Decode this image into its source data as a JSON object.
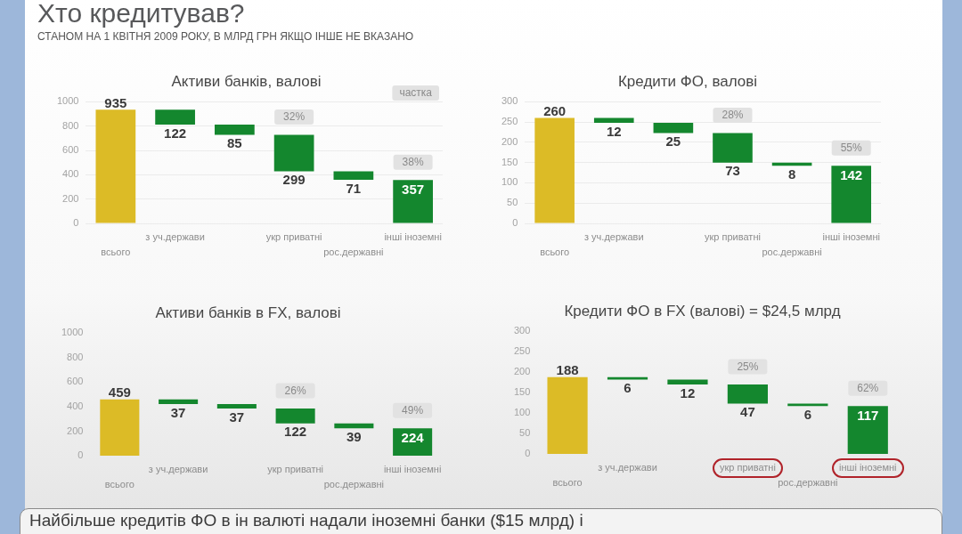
{
  "chart_data": [
    {
      "type": "other",
      "title": "Хто кредитував?",
      "subtitle": "СТАНОМ НА 1 КВІТНЯ 2009 РОКУ, В МЛРД ГРН ЯКЩО ІНШЕ НЕ ВКАЗАНО",
      "annotations": [
        "Найбільше кредитів ФО в ін валюті надали іноземні банки ($15 млрд) і"
      ]
    },
    {
      "type": "bar",
      "title": "Активи банків, валові",
      "categories": [
        "всього",
        "з уч.держави",
        null,
        "укр приватні",
        "рос.державні",
        "інші іноземні"
      ],
      "values": [
        935,
        122,
        85,
        299,
        71,
        357
      ],
      "base": [
        0,
        813,
        728,
        429,
        358,
        0
      ],
      "colors": [
        "#dcbb26",
        "#14872e",
        "#14872e",
        "#14872e",
        "#14872e",
        "#14872e"
      ],
      "ylim": [
        0,
        1000
      ],
      "yticks": [
        0,
        200,
        400,
        600,
        800,
        1000
      ],
      "grid": "y",
      "data_labels": true,
      "annotations": [
        "частка",
        {
          "text": "32%",
          "x": "укр приватні",
          "y": 728
        },
        {
          "text": "38%",
          "x": "інші іноземні",
          "y": 357
        }
      ]
    },
    {
      "type": "bar",
      "title": "Кредити ФО, валові",
      "categories": [
        "всього",
        "з уч.держави",
        null,
        "укр приватні",
        "рос.державні",
        "інші іноземні"
      ],
      "values": [
        260,
        12,
        25,
        73,
        8,
        142
      ],
      "base": [
        0,
        248,
        223,
        150,
        142,
        0
      ],
      "colors": [
        "#dcbb26",
        "#14872e",
        "#14872e",
        "#14872e",
        "#14872e",
        "#14872e"
      ],
      "ylim": [
        0,
        300
      ],
      "yticks": [
        0,
        50,
        100,
        150,
        200,
        250,
        300
      ],
      "grid": "y",
      "data_labels": true,
      "annotations": [
        {
          "text": "28%",
          "x": "укр приватні",
          "y": 223
        },
        {
          "text": "55%",
          "x": "інші іноземні",
          "y": 142
        }
      ]
    },
    {
      "type": "bar",
      "title": "Активи банків в FX, валові",
      "categories": [
        "всього",
        "з уч.держави",
        null,
        "укр приватні",
        "рос.державні",
        "інші іноземні"
      ],
      "values": [
        459,
        37,
        37,
        122,
        39,
        224
      ],
      "base": [
        0,
        422,
        385,
        263,
        224,
        0
      ],
      "colors": [
        "#dcbb26",
        "#14872e",
        "#14872e",
        "#14872e",
        "#14872e",
        "#14872e"
      ],
      "ylim": [
        0,
        1000
      ],
      "yticks": [
        0,
        200,
        400,
        600,
        800,
        1000
      ],
      "data_labels": true,
      "annotations": [
        {
          "text": "26%",
          "x": "укр приватні",
          "y": 385
        },
        {
          "text": "49%",
          "x": "інші іноземні",
          "y": 224
        }
      ]
    },
    {
      "type": "bar",
      "title": "Кредити ФО в FX (валові) = $24,5 млрд",
      "categories": [
        "всього",
        "з уч.держави",
        null,
        "укр приватні",
        "рос.державні",
        "інші іноземні"
      ],
      "values": [
        188,
        6,
        12,
        47,
        6,
        117
      ],
      "base": [
        0,
        182,
        170,
        123,
        117,
        0
      ],
      "colors": [
        "#dcbb26",
        "#14872e",
        "#14872e",
        "#14872e",
        "#14872e",
        "#14872e"
      ],
      "ylim": [
        0,
        300
      ],
      "yticks": [
        0,
        50,
        100,
        150,
        200,
        250,
        300
      ],
      "data_labels": true,
      "annotations": [
        {
          "text": "25%",
          "x": "укр приватні",
          "y": 170
        },
        {
          "text": "62%",
          "x": "інші іноземні",
          "y": 117
        }
      ]
    }
  ]
}
